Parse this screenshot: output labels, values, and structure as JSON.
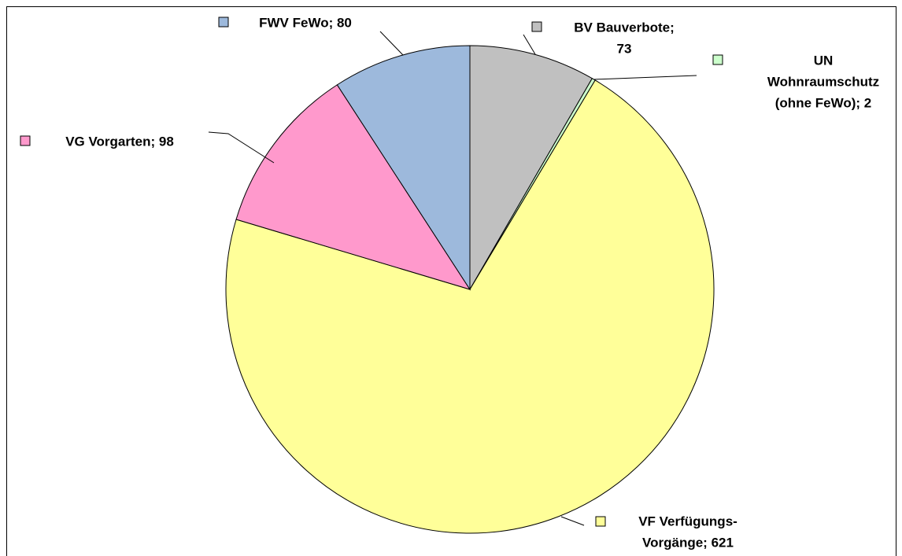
{
  "chart_data": {
    "type": "pie",
    "values": [
      73,
      2,
      621,
      98,
      80
    ],
    "value_labels": [
      [
        "BV Bauverbote;",
        "73"
      ],
      [
        "UN",
        "Wohnraumschutz",
        "(ohne FeWo); 2"
      ],
      [
        "VF Verfügungs-",
        "Vorgänge; 621"
      ],
      [
        "VG Vorgarten; 98"
      ],
      [
        "FWV FeWo; 80"
      ]
    ],
    "colors": [
      "#c0c0c0",
      "#ccffcc",
      "#ffff99",
      "#ff99cc",
      "#9db9dc"
    ]
  }
}
